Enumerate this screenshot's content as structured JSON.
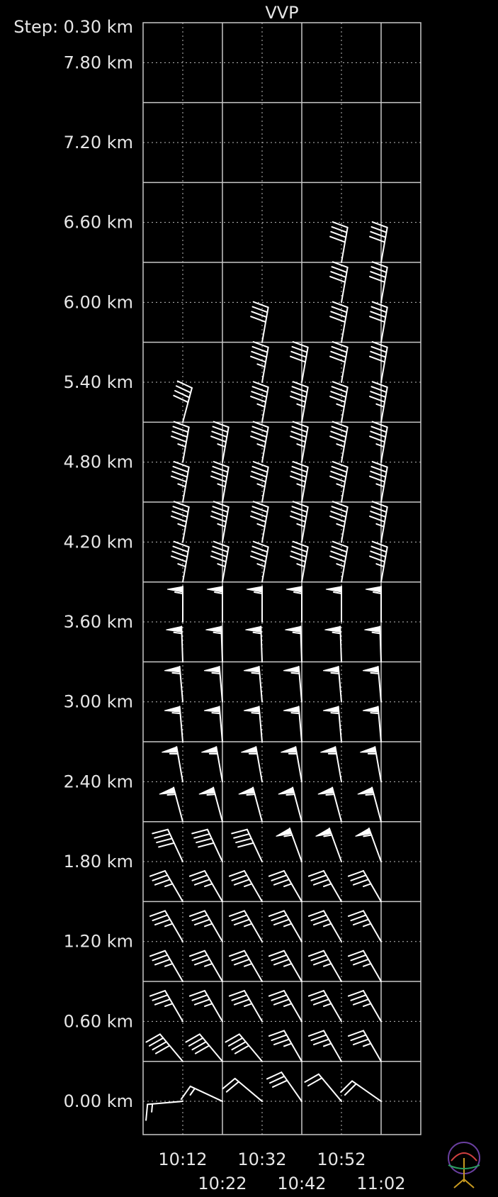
{
  "chart_data": {
    "type": "wind-barb-profile",
    "title": "VVP",
    "step_label": "Step: 0.30 km",
    "y_unit": "km",
    "y_tick_labels": [
      "0.00 km",
      "0.60 km",
      "1.20 km",
      "1.80 km",
      "2.40 km",
      "3.00 km",
      "3.60 km",
      "4.20 km",
      "4.80 km",
      "5.40 km",
      "6.00 km",
      "6.60 km",
      "7.20 km",
      "7.80 km"
    ],
    "y_ticks": [
      0,
      0.6,
      1.2,
      1.8,
      2.4,
      3.0,
      3.6,
      4.2,
      4.8,
      5.4,
      6.0,
      6.6,
      7.2,
      7.8
    ],
    "ylim": [
      -0.25,
      8.1
    ],
    "times": [
      "10:12",
      "10:22",
      "10:32",
      "10:42",
      "10:52",
      "11:02"
    ],
    "xlim_index": [
      -1,
      6
    ],
    "grid": true,
    "wind_barbs_note": "direction in degrees (from), speed in knots",
    "series": [
      {
        "time": "10:12",
        "barbs": [
          [
            0.0,
            265,
            15
          ],
          [
            0.3,
            320,
            40
          ],
          [
            0.6,
            330,
            35
          ],
          [
            0.9,
            330,
            35
          ],
          [
            1.2,
            330,
            35
          ],
          [
            1.5,
            330,
            35
          ],
          [
            1.8,
            335,
            40
          ],
          [
            2.1,
            345,
            55
          ],
          [
            2.4,
            350,
            55
          ],
          [
            2.7,
            355,
            55
          ],
          [
            3.0,
            355,
            55
          ],
          [
            3.3,
            358,
            55
          ],
          [
            3.6,
            360,
            55
          ],
          [
            3.9,
            10,
            45
          ],
          [
            4.2,
            10,
            45
          ],
          [
            4.5,
            10,
            45
          ],
          [
            4.8,
            10,
            45
          ],
          [
            5.1,
            15,
            40
          ]
        ]
      },
      {
        "time": "10:22",
        "barbs": [
          [
            0.0,
            295,
            15
          ],
          [
            0.3,
            320,
            40
          ],
          [
            0.6,
            330,
            35
          ],
          [
            0.9,
            330,
            35
          ],
          [
            1.2,
            330,
            35
          ],
          [
            1.5,
            330,
            35
          ],
          [
            1.8,
            335,
            40
          ],
          [
            2.1,
            345,
            55
          ],
          [
            2.4,
            350,
            55
          ],
          [
            2.7,
            355,
            55
          ],
          [
            3.0,
            355,
            55
          ],
          [
            3.3,
            358,
            55
          ],
          [
            3.6,
            360,
            55
          ],
          [
            3.9,
            10,
            45
          ],
          [
            4.2,
            10,
            45
          ],
          [
            4.5,
            10,
            45
          ],
          [
            4.8,
            10,
            45
          ]
        ]
      },
      {
        "time": "10:32",
        "barbs": [
          [
            0.0,
            310,
            20
          ],
          [
            0.3,
            320,
            40
          ],
          [
            0.6,
            330,
            35
          ],
          [
            0.9,
            330,
            35
          ],
          [
            1.2,
            330,
            35
          ],
          [
            1.5,
            330,
            35
          ],
          [
            1.8,
            335,
            40
          ],
          [
            2.1,
            345,
            55
          ],
          [
            2.4,
            350,
            55
          ],
          [
            2.7,
            355,
            55
          ],
          [
            3.0,
            355,
            55
          ],
          [
            3.3,
            358,
            55
          ],
          [
            3.6,
            360,
            55
          ],
          [
            3.9,
            10,
            45
          ],
          [
            4.2,
            10,
            45
          ],
          [
            4.5,
            10,
            45
          ],
          [
            4.8,
            10,
            45
          ],
          [
            5.1,
            10,
            45
          ],
          [
            5.4,
            10,
            45
          ],
          [
            5.7,
            10,
            40
          ]
        ]
      },
      {
        "time": "10:42",
        "barbs": [
          [
            0.0,
            325,
            30
          ],
          [
            0.3,
            330,
            35
          ],
          [
            0.6,
            330,
            35
          ],
          [
            0.9,
            330,
            35
          ],
          [
            1.2,
            330,
            35
          ],
          [
            1.5,
            330,
            35
          ],
          [
            1.8,
            340,
            55
          ],
          [
            2.1,
            345,
            55
          ],
          [
            2.4,
            350,
            55
          ],
          [
            2.7,
            355,
            55
          ],
          [
            3.0,
            355,
            55
          ],
          [
            3.3,
            358,
            55
          ],
          [
            3.6,
            360,
            55
          ],
          [
            3.9,
            10,
            45
          ],
          [
            4.2,
            10,
            45
          ],
          [
            4.5,
            10,
            45
          ],
          [
            4.8,
            10,
            45
          ],
          [
            5.1,
            10,
            45
          ],
          [
            5.4,
            10,
            40
          ]
        ]
      },
      {
        "time": "10:52",
        "barbs": [
          [
            0.0,
            320,
            20
          ],
          [
            0.3,
            330,
            35
          ],
          [
            0.6,
            330,
            35
          ],
          [
            0.9,
            330,
            35
          ],
          [
            1.2,
            330,
            35
          ],
          [
            1.5,
            330,
            35
          ],
          [
            1.8,
            340,
            55
          ],
          [
            2.1,
            345,
            55
          ],
          [
            2.4,
            350,
            55
          ],
          [
            2.7,
            355,
            55
          ],
          [
            3.0,
            355,
            55
          ],
          [
            3.3,
            358,
            55
          ],
          [
            3.6,
            360,
            55
          ],
          [
            3.9,
            10,
            45
          ],
          [
            4.2,
            10,
            45
          ],
          [
            4.5,
            10,
            45
          ],
          [
            4.8,
            10,
            45
          ],
          [
            5.1,
            10,
            45
          ],
          [
            5.4,
            10,
            40
          ],
          [
            5.7,
            10,
            40
          ],
          [
            6.0,
            10,
            40
          ],
          [
            6.3,
            10,
            40
          ]
        ]
      },
      {
        "time": "11:02",
        "barbs": [
          [
            0.0,
            305,
            20
          ],
          [
            0.3,
            330,
            35
          ],
          [
            0.6,
            330,
            35
          ],
          [
            0.9,
            330,
            35
          ],
          [
            1.2,
            330,
            35
          ],
          [
            1.5,
            330,
            35
          ],
          [
            1.8,
            340,
            55
          ],
          [
            2.1,
            345,
            55
          ],
          [
            2.4,
            350,
            55
          ],
          [
            2.7,
            355,
            55
          ],
          [
            3.0,
            355,
            55
          ],
          [
            3.3,
            358,
            55
          ],
          [
            3.6,
            360,
            55
          ],
          [
            3.9,
            10,
            45
          ],
          [
            4.2,
            10,
            45
          ],
          [
            4.5,
            10,
            45
          ],
          [
            4.8,
            10,
            45
          ],
          [
            5.1,
            10,
            45
          ],
          [
            5.4,
            10,
            40
          ],
          [
            5.7,
            10,
            40
          ],
          [
            6.0,
            10,
            40
          ],
          [
            6.3,
            10,
            40
          ]
        ]
      }
    ]
  },
  "colors": {
    "background": "#000000",
    "grid_solid": "#c8c8c8",
    "grid_dotted": "#bdbdbd",
    "text": "#e6e6e6",
    "barb": "#ffffff"
  },
  "logo": {
    "name": "radar-app-logo-icon"
  }
}
